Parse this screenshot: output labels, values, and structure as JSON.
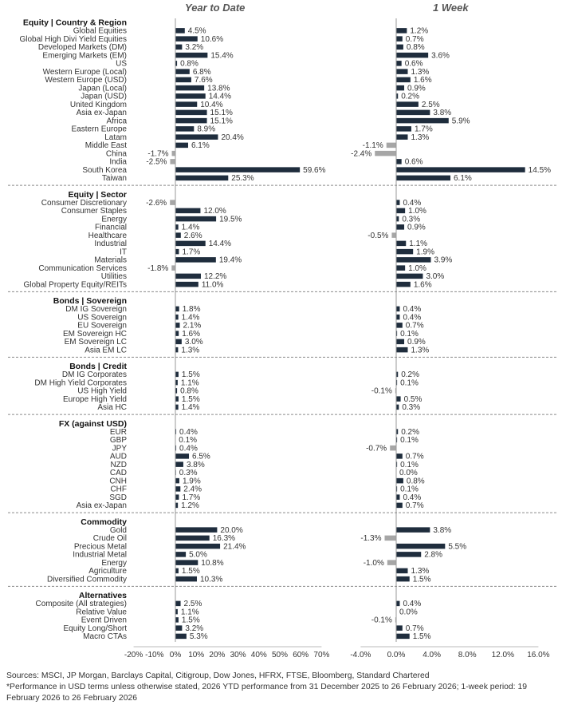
{
  "chart_data": {
    "type": "bar",
    "orientation": "horizontal",
    "panels": [
      {
        "title": "Year to Date",
        "xlim": [
          -20,
          70
        ],
        "ticks": [
          -20,
          -10,
          0,
          10,
          20,
          30,
          40,
          50,
          60,
          70
        ],
        "tick_labels": [
          "-20%",
          "-10%",
          "0%",
          "10%",
          "20%",
          "30%",
          "40%",
          "50%",
          "60%",
          "70%"
        ]
      },
      {
        "title": "1 Week",
        "xlim": [
          -4,
          16
        ],
        "ticks": [
          -4,
          0,
          4,
          8,
          12,
          16
        ],
        "tick_labels": [
          "-4.0%",
          "0.0%",
          "4.0%",
          "8.0%",
          "12.0%",
          "16.0%"
        ]
      }
    ],
    "positive_color": "#1f2d3d",
    "negative_color": "#a6a6a6",
    "groups": [
      {
        "title": "Equity | Country & Region",
        "rows": [
          {
            "label": "Global Equities",
            "ytd": 4.5,
            "ytd_label": "4.5%",
            "week": 1.2,
            "week_label": "1.2%"
          },
          {
            "label": "Global High Divi Yield Equities",
            "ytd": 10.6,
            "ytd_label": "10.6%",
            "week": 0.7,
            "week_label": "0.7%"
          },
          {
            "label": "Developed Markets (DM)",
            "ytd": 3.2,
            "ytd_label": "3.2%",
            "week": 0.8,
            "week_label": "0.8%"
          },
          {
            "label": "Emerging Markets (EM)",
            "ytd": 15.4,
            "ytd_label": "15.4%",
            "week": 3.6,
            "week_label": "3.6%"
          },
          {
            "label": "US",
            "ytd": 0.8,
            "ytd_label": "0.8%",
            "week": 0.6,
            "week_label": "0.6%"
          },
          {
            "label": "Western Europe (Local)",
            "ytd": 6.8,
            "ytd_label": "6.8%",
            "week": 1.3,
            "week_label": "1.3%"
          },
          {
            "label": "Western Europe (USD)",
            "ytd": 7.6,
            "ytd_label": "7.6%",
            "week": 1.6,
            "week_label": "1.6%"
          },
          {
            "label": "Japan (Local)",
            "ytd": 13.8,
            "ytd_label": "13.8%",
            "week": 0.9,
            "week_label": "0.9%"
          },
          {
            "label": "Japan (USD)",
            "ytd": 14.4,
            "ytd_label": "14.4%",
            "week": 0.2,
            "week_label": "0.2%"
          },
          {
            "label": "United Kingdom",
            "ytd": 10.4,
            "ytd_label": "10.4%",
            "week": 2.5,
            "week_label": "2.5%"
          },
          {
            "label": "Asia ex-Japan",
            "ytd": 15.1,
            "ytd_label": "15.1%",
            "week": 3.8,
            "week_label": "3.8%"
          },
          {
            "label": "Africa",
            "ytd": 15.1,
            "ytd_label": "15.1%",
            "week": 5.9,
            "week_label": "5.9%"
          },
          {
            "label": "Eastern Europe",
            "ytd": 8.9,
            "ytd_label": "8.9%",
            "week": 1.7,
            "week_label": "1.7%"
          },
          {
            "label": "Latam",
            "ytd": 20.4,
            "ytd_label": "20.4%",
            "week": 1.3,
            "week_label": "1.3%"
          },
          {
            "label": "Middle East",
            "ytd": 6.1,
            "ytd_label": "6.1%",
            "week": -1.1,
            "week_label": "-1.1%"
          },
          {
            "label": "China",
            "ytd": -1.7,
            "ytd_label": "-1.7%",
            "week": -2.4,
            "week_label": "-2.4%"
          },
          {
            "label": "India",
            "ytd": -2.5,
            "ytd_label": "-2.5%",
            "week": 0.6,
            "week_label": "0.6%"
          },
          {
            "label": "South Korea",
            "ytd": 59.6,
            "ytd_label": "59.6%",
            "week": 14.5,
            "week_label": "14.5%"
          },
          {
            "label": "Taiwan",
            "ytd": 25.3,
            "ytd_label": "25.3%",
            "week": 6.1,
            "week_label": "6.1%"
          }
        ]
      },
      {
        "title": "Equity | Sector",
        "rows": [
          {
            "label": "Consumer Discretionary",
            "ytd": -2.6,
            "ytd_label": "-2.6%",
            "week": 0.4,
            "week_label": "0.4%"
          },
          {
            "label": "Consumer Staples",
            "ytd": 12.0,
            "ytd_label": "12.0%",
            "week": 1.0,
            "week_label": "1.0%"
          },
          {
            "label": "Energy",
            "ytd": 19.5,
            "ytd_label": "19.5%",
            "week": 0.3,
            "week_label": "0.3%"
          },
          {
            "label": "Financial",
            "ytd": 1.4,
            "ytd_label": "1.4%",
            "week": 0.9,
            "week_label": "0.9%"
          },
          {
            "label": "Healthcare",
            "ytd": 2.6,
            "ytd_label": "2.6%",
            "week": -0.5,
            "week_label": "-0.5%"
          },
          {
            "label": "Industrial",
            "ytd": 14.4,
            "ytd_label": "14.4%",
            "week": 1.1,
            "week_label": "1.1%"
          },
          {
            "label": "IT",
            "ytd": 1.7,
            "ytd_label": "1.7%",
            "week": 1.9,
            "week_label": "1.9%"
          },
          {
            "label": "Materials",
            "ytd": 19.4,
            "ytd_label": "19.4%",
            "week": 3.9,
            "week_label": "3.9%"
          },
          {
            "label": "Communication Services",
            "ytd": -1.8,
            "ytd_label": "-1.8%",
            "week": 1.0,
            "week_label": "1.0%"
          },
          {
            "label": "Utilities",
            "ytd": 12.2,
            "ytd_label": "12.2%",
            "week": 3.0,
            "week_label": "3.0%"
          },
          {
            "label": "Global Property Equity/REITs",
            "ytd": 11.0,
            "ytd_label": "11.0%",
            "week": 1.6,
            "week_label": "1.6%"
          }
        ]
      },
      {
        "title": "Bonds | Sovereign",
        "rows": [
          {
            "label": "DM IG Sovereign",
            "ytd": 1.8,
            "ytd_label": "1.8%",
            "week": 0.4,
            "week_label": "0.4%"
          },
          {
            "label": "US Sovereign",
            "ytd": 1.4,
            "ytd_label": "1.4%",
            "week": 0.4,
            "week_label": "0.4%"
          },
          {
            "label": "EU Sovereign",
            "ytd": 2.1,
            "ytd_label": "2.1%",
            "week": 0.7,
            "week_label": "0.7%"
          },
          {
            "label": "EM Sovereign HC",
            "ytd": 1.6,
            "ytd_label": "1.6%",
            "week": 0.1,
            "week_label": "0.1%"
          },
          {
            "label": "EM Sovereign LC",
            "ytd": 3.0,
            "ytd_label": "3.0%",
            "week": 0.9,
            "week_label": "0.9%"
          },
          {
            "label": "Asia EM LC",
            "ytd": 1.3,
            "ytd_label": "1.3%",
            "week": 1.3,
            "week_label": "1.3%"
          }
        ]
      },
      {
        "title": "Bonds | Credit",
        "rows": [
          {
            "label": "DM IG Corporates",
            "ytd": 1.5,
            "ytd_label": "1.5%",
            "week": 0.2,
            "week_label": "0.2%"
          },
          {
            "label": "DM High Yield Corporates",
            "ytd": 1.1,
            "ytd_label": "1.1%",
            "week": 0.1,
            "week_label": "0.1%"
          },
          {
            "label": "US High Yield",
            "ytd": 0.8,
            "ytd_label": "0.8%",
            "week": -0.1,
            "week_label": "-0.1%"
          },
          {
            "label": "Europe High Yield",
            "ytd": 1.5,
            "ytd_label": "1.5%",
            "week": 0.5,
            "week_label": "0.5%"
          },
          {
            "label": "Asia HC",
            "ytd": 1.4,
            "ytd_label": "1.4%",
            "week": 0.3,
            "week_label": "0.3%"
          }
        ]
      },
      {
        "title": "FX (against USD)",
        "rows": [
          {
            "label": "EUR",
            "ytd": 0.4,
            "ytd_label": "0.4%",
            "week": 0.2,
            "week_label": "0.2%"
          },
          {
            "label": "GBP",
            "ytd": 0.1,
            "ytd_label": "0.1%",
            "week": 0.1,
            "week_label": "0.1%"
          },
          {
            "label": "JPY",
            "ytd": 0.4,
            "ytd_label": "0.4%",
            "week": -0.7,
            "week_label": "-0.7%"
          },
          {
            "label": "AUD",
            "ytd": 6.5,
            "ytd_label": "6.5%",
            "week": 0.7,
            "week_label": "0.7%"
          },
          {
            "label": "NZD",
            "ytd": 3.8,
            "ytd_label": "3.8%",
            "week": 0.1,
            "week_label": "0.1%"
          },
          {
            "label": "CAD",
            "ytd": 0.3,
            "ytd_label": "0.3%",
            "week": 0.0,
            "week_label": "0.0%"
          },
          {
            "label": "CNH",
            "ytd": 1.9,
            "ytd_label": "1.9%",
            "week": 0.8,
            "week_label": "0.8%"
          },
          {
            "label": "CHF",
            "ytd": 2.4,
            "ytd_label": "2.4%",
            "week": 0.1,
            "week_label": "0.1%"
          },
          {
            "label": "SGD",
            "ytd": 1.7,
            "ytd_label": "1.7%",
            "week": 0.4,
            "week_label": "0.4%"
          },
          {
            "label": "Asia ex-Japan",
            "ytd": 1.2,
            "ytd_label": "1.2%",
            "week": 0.7,
            "week_label": "0.7%"
          }
        ]
      },
      {
        "title": "Commodity",
        "rows": [
          {
            "label": "Gold",
            "ytd": 20.0,
            "ytd_label": "20.0%",
            "week": 3.8,
            "week_label": "3.8%"
          },
          {
            "label": "Crude Oil",
            "ytd": 16.3,
            "ytd_label": "16.3%",
            "week": -1.3,
            "week_label": "-1.3%"
          },
          {
            "label": "Precious Metal",
            "ytd": 21.4,
            "ytd_label": "21.4%",
            "week": 5.5,
            "week_label": "5.5%"
          },
          {
            "label": "Industrial Metal",
            "ytd": 5.0,
            "ytd_label": "5.0%",
            "week": 2.8,
            "week_label": "2.8%"
          },
          {
            "label": "Energy",
            "ytd": 10.8,
            "ytd_label": "10.8%",
            "week": -1.0,
            "week_label": "-1.0%"
          },
          {
            "label": "Agriculture",
            "ytd": 1.5,
            "ytd_label": "1.5%",
            "week": 1.3,
            "week_label": "1.3%"
          },
          {
            "label": "Diversified Commodity",
            "ytd": 10.3,
            "ytd_label": "10.3%",
            "week": 1.5,
            "week_label": "1.5%"
          }
        ]
      },
      {
        "title": "Alternatives",
        "rows": [
          {
            "label": "Composite (All strategies)",
            "ytd": 2.5,
            "ytd_label": "2.5%",
            "week": 0.4,
            "week_label": "0.4%"
          },
          {
            "label": "Relative Value",
            "ytd": 1.1,
            "ytd_label": "1.1%",
            "week": 0.0,
            "week_label": "0.0%"
          },
          {
            "label": "Event Driven",
            "ytd": 1.5,
            "ytd_label": "1.5%",
            "week": -0.1,
            "week_label": "-0.1%"
          },
          {
            "label": "Equity Long/Short",
            "ytd": 3.2,
            "ytd_label": "3.2%",
            "week": 0.7,
            "week_label": "0.7%"
          },
          {
            "label": "Macro CTAs",
            "ytd": 5.3,
            "ytd_label": "5.3%",
            "week": 1.5,
            "week_label": "1.5%"
          }
        ]
      }
    ]
  },
  "footer": {
    "sources": "Sources: MSCI, JP Morgan, Barclays Capital, Citigroup, Dow Jones, HFRX, FTSE, Bloomberg, Standard Chartered",
    "note": "*Performance in USD terms unless otherwise stated, 2026 YTD performance from 31 December 2025 to 26 February 2026; 1-week period: 19 February 2026 to 26 February 2026"
  }
}
